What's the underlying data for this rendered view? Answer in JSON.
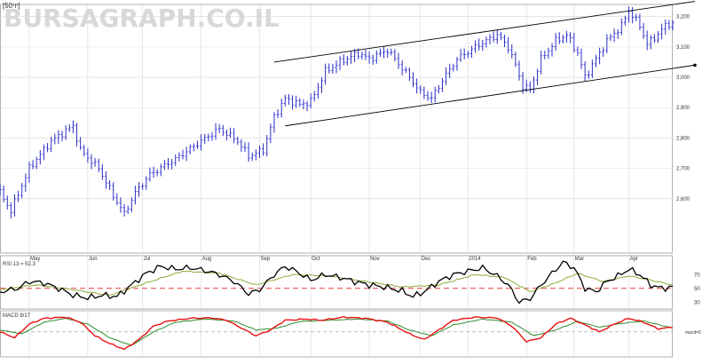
{
  "header": {
    "period_label": "[50יוי]",
    "watermark": "BURSAGRAPH.CO.IL"
  },
  "colors": {
    "bars": "#2b2fc8",
    "channel": "#000000",
    "rsi_line": "#000000",
    "rsi_signal": "#8fa838",
    "rsi_ref": "#e04040",
    "macd_line": "#e81010",
    "macd_signal": "#2e8b2e",
    "grid": "#d8d8d8"
  },
  "x_axis": {
    "months": [
      {
        "label": "May",
        "t": 8
      },
      {
        "label": "Jun",
        "t": 24
      },
      {
        "label": "Jul",
        "t": 39
      },
      {
        "label": "Aug",
        "t": 55
      },
      {
        "label": "Sep",
        "t": 71
      },
      {
        "label": "Oct",
        "t": 85
      },
      {
        "label": "Nov",
        "t": 101
      },
      {
        "label": "Dec",
        "t": 115
      },
      {
        "label": "2014",
        "t": 128
      },
      {
        "label": "Feb",
        "t": 144
      },
      {
        "label": "Mar",
        "t": 157
      },
      {
        "label": "Apr",
        "t": 172
      }
    ]
  },
  "chart_data": [
    {
      "type": "bar",
      "subtype": "ohlc",
      "ylim": [
        2500,
        3240
      ],
      "yticks": [
        "2,600",
        "2,700",
        "2,800",
        "2,900",
        "3,000",
        "3,100",
        "3,200"
      ],
      "ytick_values": [
        2600,
        2700,
        2800,
        2900,
        3000,
        3100,
        3200
      ],
      "x_count": 185,
      "close_anchors": [
        [
          0,
          2620
        ],
        [
          3,
          2560
        ],
        [
          8,
          2700
        ],
        [
          14,
          2790
        ],
        [
          20,
          2840
        ],
        [
          22,
          2760
        ],
        [
          27,
          2700
        ],
        [
          31,
          2610
        ],
        [
          34,
          2550
        ],
        [
          37,
          2620
        ],
        [
          41,
          2680
        ],
        [
          48,
          2730
        ],
        [
          55,
          2790
        ],
        [
          60,
          2830
        ],
        [
          65,
          2790
        ],
        [
          68,
          2740
        ],
        [
          72,
          2760
        ],
        [
          75,
          2870
        ],
        [
          78,
          2930
        ],
        [
          82,
          2910
        ],
        [
          85,
          2920
        ],
        [
          89,
          3020
        ],
        [
          93,
          3050
        ],
        [
          98,
          3080
        ],
        [
          101,
          3060
        ],
        [
          106,
          3090
        ],
        [
          112,
          3000
        ],
        [
          115,
          2950
        ],
        [
          118,
          2930
        ],
        [
          121,
          2990
        ],
        [
          125,
          3060
        ],
        [
          130,
          3100
        ],
        [
          133,
          3120
        ],
        [
          136,
          3140
        ],
        [
          139,
          3100
        ],
        [
          141,
          3040
        ],
        [
          143,
          2970
        ],
        [
          145,
          2960
        ],
        [
          148,
          3060
        ],
        [
          152,
          3120
        ],
        [
          155,
          3140
        ],
        [
          158,
          3080
        ],
        [
          160,
          3000
        ],
        [
          162,
          3040
        ],
        [
          166,
          3120
        ],
        [
          170,
          3170
        ],
        [
          172,
          3220
        ],
        [
          175,
          3170
        ],
        [
          177,
          3110
        ],
        [
          179,
          3130
        ],
        [
          182,
          3170
        ],
        [
          184,
          3180
        ]
      ],
      "channel": {
        "upper": [
          [
            75,
            3050
          ],
          [
            184,
            3250
          ]
        ],
        "lower": [
          [
            78,
            2840
          ],
          [
            184,
            3040
          ]
        ]
      }
    },
    {
      "type": "line",
      "title": "RSI 13 = 52.3",
      "ylim": [
        20,
        95
      ],
      "yticks": [
        "30",
        "50",
        "70"
      ],
      "ytick_values": [
        30,
        50,
        70
      ],
      "ref_line": 50,
      "series": [
        {
          "role": "rsi",
          "anchors": [
            [
              0,
              45
            ],
            [
              5,
              50
            ],
            [
              8,
              60
            ],
            [
              12,
              58
            ],
            [
              16,
              50
            ],
            [
              20,
              40
            ],
            [
              24,
              36
            ],
            [
              28,
              40
            ],
            [
              32,
              38
            ],
            [
              36,
              55
            ],
            [
              40,
              72
            ],
            [
              44,
              82
            ],
            [
              48,
              78
            ],
            [
              52,
              80
            ],
            [
              56,
              76
            ],
            [
              60,
              70
            ],
            [
              64,
              60
            ],
            [
              68,
              42
            ],
            [
              71,
              48
            ],
            [
              75,
              70
            ],
            [
              78,
              82
            ],
            [
              81,
              75
            ],
            [
              85,
              62
            ],
            [
              89,
              70
            ],
            [
              93,
              66
            ],
            [
              97,
              60
            ],
            [
              101,
              55
            ],
            [
              105,
              52
            ],
            [
              110,
              46
            ],
            [
              113,
              38
            ],
            [
              116,
              45
            ],
            [
              120,
              60
            ],
            [
              124,
              70
            ],
            [
              128,
              75
            ],
            [
              132,
              80
            ],
            [
              136,
              68
            ],
            [
              139,
              55
            ],
            [
              142,
              30
            ],
            [
              145,
              35
            ],
            [
              148,
              55
            ],
            [
              151,
              72
            ],
            [
              154,
              88
            ],
            [
              157,
              80
            ],
            [
              160,
              50
            ],
            [
              163,
              45
            ],
            [
              166,
              60
            ],
            [
              169,
              68
            ],
            [
              172,
              78
            ],
            [
              175,
              70
            ],
            [
              178,
              55
            ],
            [
              181,
              50
            ],
            [
              184,
              52
            ]
          ]
        },
        {
          "role": "signal",
          "anchors": [
            [
              0,
              48
            ],
            [
              10,
              55
            ],
            [
              20,
              48
            ],
            [
              30,
              40
            ],
            [
              40,
              58
            ],
            [
              50,
              75
            ],
            [
              60,
              72
            ],
            [
              70,
              55
            ],
            [
              80,
              70
            ],
            [
              90,
              68
            ],
            [
              100,
              60
            ],
            [
              110,
              52
            ],
            [
              120,
              55
            ],
            [
              130,
              70
            ],
            [
              138,
              66
            ],
            [
              145,
              45
            ],
            [
              152,
              58
            ],
            [
              158,
              72
            ],
            [
              165,
              60
            ],
            [
              172,
              68
            ],
            [
              178,
              62
            ],
            [
              184,
              55
            ]
          ]
        }
      ]
    },
    {
      "type": "line",
      "title": "MACD 8/17",
      "ylim": [
        -60,
        50
      ],
      "yticks": [
        "macd=0"
      ],
      "ytick_values": [
        0
      ],
      "ref_line": 0,
      "series": [
        {
          "role": "macd",
          "anchors": [
            [
              0,
              0
            ],
            [
              4,
              -15
            ],
            [
              8,
              20
            ],
            [
              12,
              35
            ],
            [
              18,
              38
            ],
            [
              22,
              25
            ],
            [
              26,
              -10
            ],
            [
              30,
              -30
            ],
            [
              34,
              -45
            ],
            [
              38,
              -20
            ],
            [
              42,
              15
            ],
            [
              46,
              28
            ],
            [
              52,
              35
            ],
            [
              58,
              36
            ],
            [
              62,
              30
            ],
            [
              66,
              10
            ],
            [
              70,
              -10
            ],
            [
              74,
              5
            ],
            [
              78,
              30
            ],
            [
              84,
              33
            ],
            [
              88,
              30
            ],
            [
              94,
              38
            ],
            [
              100,
              35
            ],
            [
              106,
              25
            ],
            [
              112,
              -5
            ],
            [
              116,
              -20
            ],
            [
              120,
              5
            ],
            [
              124,
              30
            ],
            [
              130,
              38
            ],
            [
              136,
              36
            ],
            [
              140,
              15
            ],
            [
              144,
              -25
            ],
            [
              148,
              -15
            ],
            [
              152,
              20
            ],
            [
              156,
              35
            ],
            [
              160,
              18
            ],
            [
              164,
              0
            ],
            [
              168,
              20
            ],
            [
              172,
              35
            ],
            [
              176,
              25
            ],
            [
              180,
              8
            ],
            [
              184,
              12
            ]
          ]
        },
        {
          "role": "signal",
          "anchors": [
            [
              0,
              5
            ],
            [
              6,
              -5
            ],
            [
              12,
              25
            ],
            [
              18,
              35
            ],
            [
              24,
              20
            ],
            [
              30,
              -15
            ],
            [
              36,
              -35
            ],
            [
              42,
              0
            ],
            [
              48,
              25
            ],
            [
              56,
              33
            ],
            [
              64,
              28
            ],
            [
              70,
              5
            ],
            [
              76,
              10
            ],
            [
              82,
              27
            ],
            [
              90,
              30
            ],
            [
              98,
              33
            ],
            [
              106,
              28
            ],
            [
              112,
              5
            ],
            [
              118,
              -10
            ],
            [
              124,
              18
            ],
            [
              132,
              33
            ],
            [
              140,
              25
            ],
            [
              146,
              -10
            ],
            [
              152,
              5
            ],
            [
              158,
              27
            ],
            [
              164,
              12
            ],
            [
              170,
              22
            ],
            [
              176,
              28
            ],
            [
              184,
              10
            ]
          ]
        }
      ]
    }
  ]
}
